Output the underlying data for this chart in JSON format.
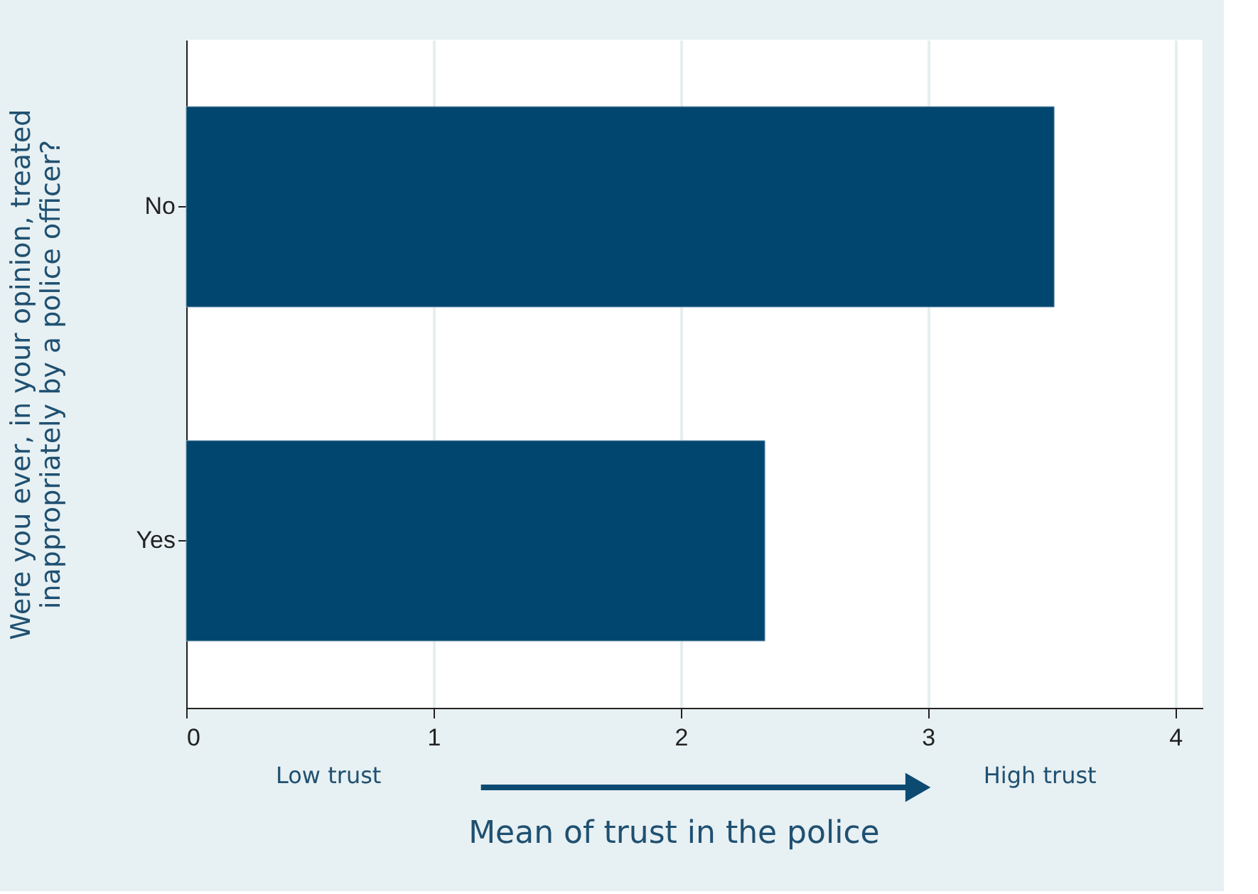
{
  "chart_data": {
    "type": "bar",
    "orientation": "horizontal",
    "categories": [
      "No",
      "Yes"
    ],
    "values": [
      3.51,
      2.34
    ],
    "color": "#01466f",
    "xlim": [
      0,
      4.11
    ],
    "xticks": [
      0,
      1,
      2,
      3,
      4
    ],
    "grid": "x",
    "xlabel": "Mean of trust in the police",
    "ylabel": "Were you ever, in your opinion, treated inappropriately by a police officer?",
    "annotations": [
      "Low trust",
      "High trust"
    ]
  }
}
